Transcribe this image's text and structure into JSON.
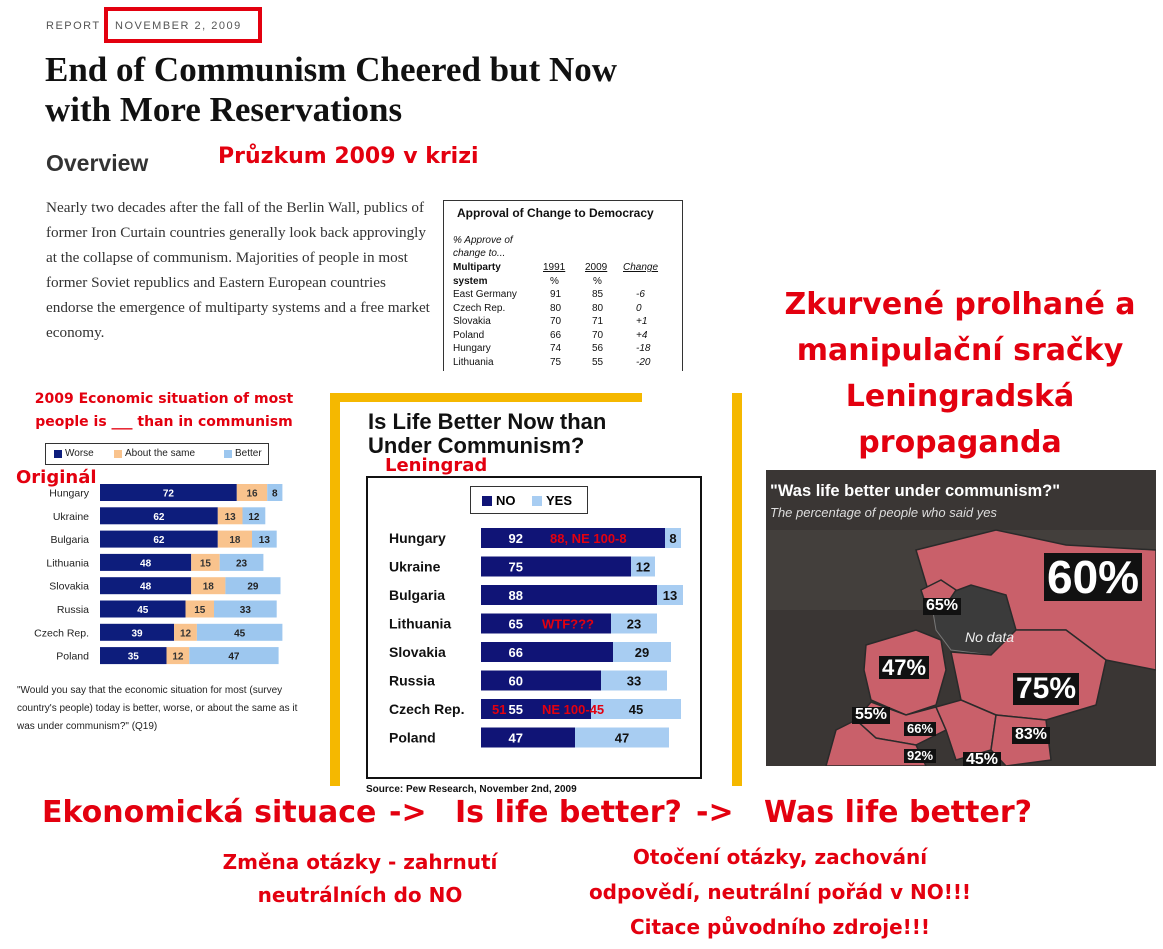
{
  "header": {
    "report": "REPORT",
    "date": "NOVEMBER 2, 2009",
    "headline_lines": [
      "End of Communism Cheered but Now",
      "with More Reservations"
    ],
    "overview_heading": "Overview",
    "overview_text": "Nearly two decades after the fall of the Berlin Wall, publics of former Iron Curtain countries generally look back approvingly at the collapse of communism. Majorities of people in most former Soviet republics and Eastern European countries endorse the emergence of multiparty systems and a free market economy."
  },
  "annotations": {
    "survey_note": "Průzkum 2009 v krizi",
    "left_caption_lines": [
      "2009 Economic situation of most",
      "people is ___ than in communism"
    ],
    "original_label": "Originál",
    "leningrad_label": "Leningrad",
    "right_caption_lines": [
      "Zkurvené prolhané a",
      "manipulační sračky",
      "Leningradská",
      "propaganda"
    ],
    "flow": {
      "step1": "Ekonomická situace",
      "arrow1": "->",
      "step2": "Is life better?",
      "arrow2": "->",
      "step3": "Was life better?"
    },
    "note_change_lines": [
      "Změna otázky - zahrnutí",
      "neutrálních do NO"
    ],
    "note_flip_lines": [
      "Otočení otázky, zachování",
      "odpovědí, neutrální pořád v NO!!!",
      "Citace původního zdroje!!!"
    ],
    "overlay_hungary": "88, NE 100-8",
    "overlay_lithuania": "WTF???",
    "overlay_czech_pre": "51",
    "overlay_czech_post": "NE 100-45"
  },
  "approval_table": {
    "title": "Approval of Change to Democracy",
    "subtitle_lines": [
      "% Approve of",
      "change to..."
    ],
    "row_header_lines": [
      "Multiparty",
      "system"
    ],
    "col_1991": "1991",
    "col_2009": "2009",
    "col_change": "Change",
    "unit": "%",
    "rows": [
      {
        "country": "East Germany",
        "y1991": "91",
        "y2009": "85",
        "change": "-6"
      },
      {
        "country": "Czech Rep.",
        "y1991": "80",
        "y2009": "80",
        "change": "0"
      },
      {
        "country": "Slovakia",
        "y1991": "70",
        "y2009": "71",
        "change": "+1"
      },
      {
        "country": "Poland",
        "y1991": "66",
        "y2009": "70",
        "change": "+4"
      },
      {
        "country": "Hungary",
        "y1991": "74",
        "y2009": "56",
        "change": "-18"
      },
      {
        "country": "Lithuania",
        "y1991": "75",
        "y2009": "55",
        "change": "-20"
      }
    ]
  },
  "left_note": "\"Would you say that the economic situation for most (survey country's people) today is better, worse, or about the same as it was under communism?\" (Q19)",
  "mid_chart": {
    "title_lines": [
      "Is Life Better Now than",
      "Under Communism?"
    ],
    "source": "Source: Pew Research, November 2nd, 2009"
  },
  "map": {
    "title": "\"Was life better under communism?\"",
    "subtitle": "The percentage of people who said yes",
    "no_data": "No data",
    "labels": [
      "60%",
      "65%",
      "47%",
      "75%",
      "55%",
      "66%",
      "83%",
      "92%",
      "45%"
    ]
  },
  "colors": {
    "worse": "#0d1d7c",
    "same": "#f9c38d",
    "better": "#9dc7ef",
    "no": "#101476",
    "yes": "#a8cdf2",
    "red": "#e3000f",
    "frame": "#f5b800",
    "map_land": "#c9606a"
  },
  "chart_data": [
    {
      "type": "bar",
      "stacked": true,
      "orientation": "horizontal",
      "legend_position": "top",
      "categories": [
        "Hungary",
        "Ukraine",
        "Bulgaria",
        "Lithuania",
        "Slovakia",
        "Russia",
        "Czech Rep.",
        "Poland"
      ],
      "series": [
        {
          "name": "Worse",
          "values": [
            72,
            62,
            62,
            48,
            48,
            45,
            39,
            35
          ]
        },
        {
          "name": "About the same",
          "values": [
            16,
            13,
            18,
            15,
            18,
            15,
            12,
            12
          ]
        },
        {
          "name": "Better",
          "values": [
            8,
            12,
            13,
            23,
            29,
            33,
            45,
            47
          ]
        }
      ],
      "xlim": [
        0,
        100
      ]
    },
    {
      "type": "bar",
      "stacked": true,
      "orientation": "horizontal",
      "legend_position": "top",
      "title": "Is Life Better Now than Under Communism?",
      "categories": [
        "Hungary",
        "Ukraine",
        "Bulgaria",
        "Lithuania",
        "Slovakia",
        "Russia",
        "Czech Rep.",
        "Poland"
      ],
      "series": [
        {
          "name": "NO",
          "values": [
            92,
            75,
            88,
            65,
            66,
            60,
            55,
            47
          ]
        },
        {
          "name": "YES",
          "values": [
            8,
            12,
            13,
            23,
            29,
            33,
            45,
            47
          ]
        }
      ],
      "xlim": [
        0,
        100
      ]
    }
  ]
}
